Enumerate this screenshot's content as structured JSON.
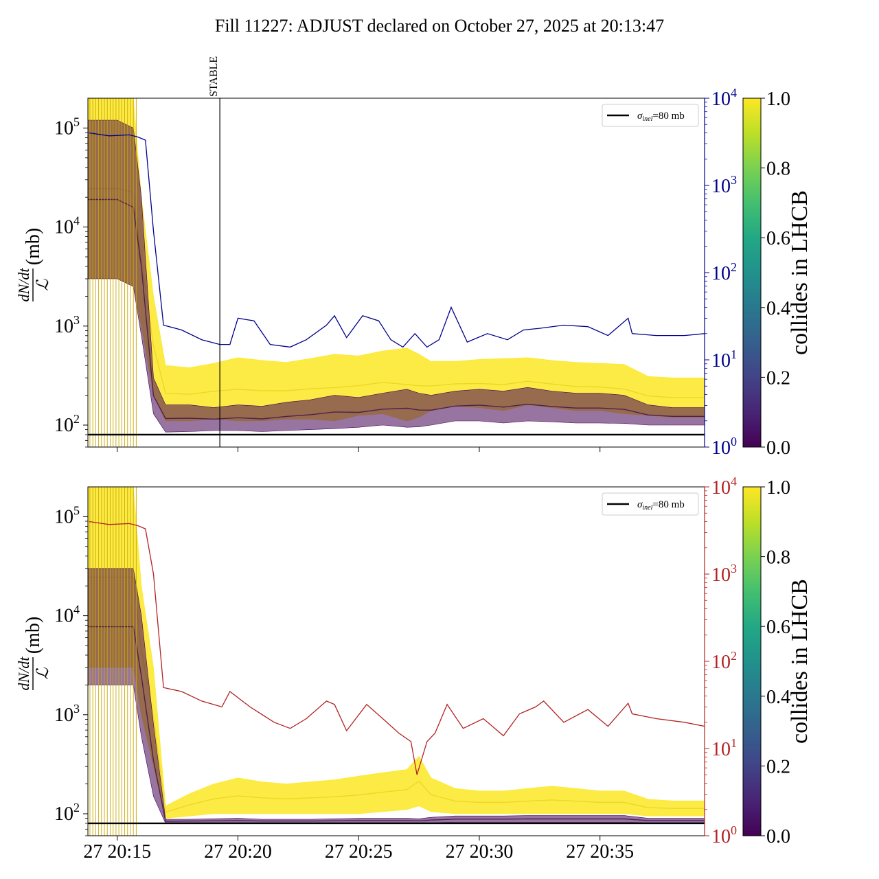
{
  "figure": {
    "title": "Fill 11227: ADJUST declared on October 27, 2025 at 20:13:47"
  },
  "chart_data": [
    {
      "type": "line",
      "panel": "top",
      "ylabel_left": "dN/dt / ℒ (mb)",
      "ylabel_left_parts": {
        "numerator": "dN/dt",
        "denominator": "ℒ",
        "unit": "(mb)"
      },
      "yscale": "log",
      "ylim_left": [
        60,
        200000
      ],
      "yticks_left": [
        {
          "value": 100,
          "label": "10",
          "exp": "2"
        },
        {
          "value": 1000,
          "label": "10",
          "exp": "3"
        },
        {
          "value": 10000,
          "label": "10",
          "exp": "4"
        },
        {
          "value": 100000,
          "label": "10",
          "exp": "5"
        }
      ],
      "ylim_right": [
        1,
        10000
      ],
      "yticks_right": [
        {
          "value": 1,
          "label": "10",
          "exp": "0"
        },
        {
          "value": 10,
          "label": "10",
          "exp": "1"
        },
        {
          "value": 100,
          "label": "10",
          "exp": "2"
        },
        {
          "value": 1000,
          "label": "10",
          "exp": "3"
        },
        {
          "value": 10000,
          "label": "10",
          "exp": "4"
        }
      ],
      "right_axis_color": "#00008b",
      "xlim": [
        "20:13:47",
        "20:39:20"
      ],
      "vline": {
        "time": "20:19:15",
        "label": "STABLE"
      },
      "hline": {
        "value": 80
      },
      "legend": {
        "label_symbol": "σ",
        "label_subscript": "inel",
        "label_text": "=80 mb",
        "position": "upper right"
      },
      "colorbar": {
        "label": "collides in LHCB",
        "ticks": [
          "0.0",
          "0.2",
          "0.4",
          "0.6",
          "0.8",
          "1.0"
        ],
        "colormap": "viridis"
      },
      "right_series": {
        "color": "#00008b",
        "t": [
          "20:13:50",
          "20:14:40",
          "20:15:30",
          "20:15:50",
          "20:16:10",
          "20:16:30",
          "20:16:55",
          "20:17:40",
          "20:18:30",
          "20:19:15",
          "20:19:40",
          "20:20:00",
          "20:20:40",
          "20:21:20",
          "20:22:10",
          "20:22:50",
          "20:23:40",
          "20:24:00",
          "20:24:30",
          "20:25:10",
          "20:25:50",
          "20:26:20",
          "20:26:50",
          "20:27:20",
          "20:27:50",
          "20:28:20",
          "20:28:50",
          "20:29:30",
          "20:30:20",
          "20:31:10",
          "20:31:50",
          "20:32:30",
          "20:33:30",
          "20:34:30",
          "20:35:20",
          "20:36:10",
          "20:36:20",
          "20:37:20",
          "20:38:30",
          "20:39:20"
        ],
        "values": [
          4000,
          3700,
          3800,
          3600,
          3300,
          300,
          25,
          22,
          17,
          15,
          15,
          30,
          28,
          15,
          14,
          17,
          25,
          32,
          18,
          32,
          28,
          17,
          14,
          20,
          14,
          17,
          40,
          16,
          20,
          17,
          22,
          23,
          25,
          24,
          19,
          30,
          20,
          19,
          19,
          20
        ]
      },
      "envelope_series": [
        {
          "name": "collides in LHCB = 1.0",
          "color": "#fde725",
          "t": [
            "20:13:47",
            "20:15:00",
            "20:15:40",
            "20:16:00",
            "20:16:30",
            "20:17:00",
            "20:18:00",
            "20:19:00",
            "20:20:00",
            "20:21:00",
            "20:22:00",
            "20:23:00",
            "20:24:00",
            "20:25:00",
            "20:26:00",
            "20:27:00",
            "20:27:30",
            "20:28:00",
            "20:29:00",
            "20:30:00",
            "20:31:00",
            "20:32:00",
            "20:33:00",
            "20:34:00",
            "20:35:00",
            "20:36:00",
            "20:37:00",
            "20:38:00",
            "20:39:20"
          ],
          "upper": [
            200000,
            200000,
            200000,
            20000,
            2000,
            400,
            380,
            420,
            480,
            450,
            430,
            470,
            520,
            500,
            560,
            600,
            520,
            440,
            440,
            460,
            470,
            480,
            450,
            430,
            420,
            410,
            310,
            300,
            300
          ],
          "lower": [
            3000,
            3000,
            2500,
            1000,
            200,
            110,
            110,
            115,
            110,
            110,
            115,
            115,
            110,
            125,
            130,
            110,
            120,
            140,
            155,
            150,
            140,
            160,
            150,
            140,
            140,
            130,
            125,
            120,
            120
          ]
        },
        {
          "name": "collides in LHCB = 0.0",
          "color": "#440154",
          "t": [
            "20:13:47",
            "20:15:00",
            "20:15:40",
            "20:16:00",
            "20:16:30",
            "20:17:00",
            "20:18:00",
            "20:19:00",
            "20:20:00",
            "20:21:00",
            "20:22:00",
            "20:23:00",
            "20:24:00",
            "20:25:00",
            "20:26:00",
            "20:27:00",
            "20:27:30",
            "20:28:00",
            "20:29:00",
            "20:30:00",
            "20:31:00",
            "20:32:00",
            "20:33:00",
            "20:34:00",
            "20:35:00",
            "20:36:00",
            "20:37:00",
            "20:38:00",
            "20:39:20"
          ],
          "upper": [
            120000,
            120000,
            100000,
            20000,
            300,
            160,
            160,
            150,
            160,
            155,
            170,
            180,
            200,
            190,
            210,
            230,
            210,
            200,
            220,
            230,
            220,
            240,
            220,
            210,
            210,
            200,
            160,
            150,
            150
          ],
          "lower": [
            3000,
            3000,
            2500,
            800,
            130,
            85,
            86,
            88,
            88,
            86,
            88,
            90,
            92,
            95,
            100,
            95,
            96,
            100,
            110,
            110,
            105,
            110,
            108,
            105,
            105,
            104,
            100,
            100,
            100
          ]
        }
      ]
    },
    {
      "type": "line",
      "panel": "bottom",
      "ylabel_left": "dN/dt / ℒ (mb)",
      "ylabel_left_parts": {
        "numerator": "dN/dt",
        "denominator": "ℒ",
        "unit": "(mb)"
      },
      "yscale": "log",
      "ylim_left": [
        60,
        200000
      ],
      "yticks_left": [
        {
          "value": 100,
          "label": "10",
          "exp": "2"
        },
        {
          "value": 1000,
          "label": "10",
          "exp": "3"
        },
        {
          "value": 10000,
          "label": "10",
          "exp": "4"
        },
        {
          "value": 100000,
          "label": "10",
          "exp": "5"
        }
      ],
      "ylim_right": [
        1,
        10000
      ],
      "yticks_right": [
        {
          "value": 1,
          "label": "10",
          "exp": "0"
        },
        {
          "value": 10,
          "label": "10",
          "exp": "1"
        },
        {
          "value": 100,
          "label": "10",
          "exp": "2"
        },
        {
          "value": 1000,
          "label": "10",
          "exp": "3"
        },
        {
          "value": 10000,
          "label": "10",
          "exp": "4"
        }
      ],
      "right_axis_color": "#b22222",
      "xlim": [
        "20:13:47",
        "20:39:20"
      ],
      "xticks": [
        "27 20:15",
        "27 20:20",
        "27 20:25",
        "27 20:30",
        "27 20:35"
      ],
      "xtick_times": [
        "20:15:00",
        "20:20:00",
        "20:25:00",
        "20:30:00",
        "20:35:00"
      ],
      "hline": {
        "value": 80
      },
      "legend": {
        "label_symbol": "σ",
        "label_subscript": "inel",
        "label_text": "=80 mb",
        "position": "upper right"
      },
      "colorbar": {
        "label": "collides in LHCB",
        "ticks": [
          "0.0",
          "0.2",
          "0.4",
          "0.6",
          "0.8",
          "1.0"
        ],
        "colormap": "viridis"
      },
      "right_series": {
        "color": "#b22222",
        "t": [
          "20:13:50",
          "20:14:40",
          "20:15:30",
          "20:15:50",
          "20:16:10",
          "20:16:30",
          "20:16:55",
          "20:17:40",
          "20:18:30",
          "20:19:20",
          "20:19:40",
          "20:20:30",
          "20:21:30",
          "20:22:10",
          "20:22:50",
          "20:23:40",
          "20:24:00",
          "20:24:30",
          "20:25:20",
          "20:26:00",
          "20:26:40",
          "20:27:10",
          "20:27:25",
          "20:27:50",
          "20:28:10",
          "20:28:40",
          "20:29:20",
          "20:30:10",
          "20:31:00",
          "20:31:40",
          "20:32:20",
          "20:32:40",
          "20:33:30",
          "20:34:30",
          "20:35:20",
          "20:36:10",
          "20:36:20",
          "20:37:20",
          "20:38:30",
          "20:39:20"
        ],
        "values": [
          4000,
          3700,
          3800,
          3600,
          3300,
          1000,
          50,
          45,
          35,
          30,
          45,
          30,
          20,
          17,
          22,
          35,
          32,
          16,
          32,
          22,
          15,
          12,
          5,
          12,
          15,
          32,
          17,
          22,
          14,
          25,
          30,
          35,
          20,
          28,
          18,
          33,
          25,
          22,
          20,
          18
        ]
      },
      "envelope_series": [
        {
          "name": "collides in LHCB = 1.0",
          "color": "#fde725",
          "t": [
            "20:13:47",
            "20:15:00",
            "20:15:40",
            "20:16:00",
            "20:16:30",
            "20:17:00",
            "20:18:00",
            "20:19:00",
            "20:20:00",
            "20:21:00",
            "20:22:00",
            "20:23:00",
            "20:24:00",
            "20:25:00",
            "20:26:00",
            "20:27:00",
            "20:27:30",
            "20:28:00",
            "20:29:00",
            "20:30:00",
            "20:31:00",
            "20:32:00",
            "20:33:00",
            "20:34:00",
            "20:35:00",
            "20:36:00",
            "20:37:00",
            "20:38:00",
            "20:39:20"
          ],
          "upper": [
            200000,
            200000,
            200000,
            20000,
            3000,
            120,
            160,
            200,
            230,
            210,
            200,
            210,
            220,
            240,
            260,
            280,
            380,
            230,
            180,
            170,
            170,
            180,
            190,
            180,
            170,
            170,
            140,
            135,
            135
          ],
          "lower": [
            3000,
            3000,
            3000,
            1000,
            300,
            90,
            95,
            100,
            100,
            100,
            100,
            100,
            100,
            100,
            105,
            110,
            120,
            105,
            100,
            100,
            100,
            100,
            100,
            100,
            100,
            100,
            95,
            95,
            95
          ]
        },
        {
          "name": "collides in LHCB = 0.0",
          "color": "#440154",
          "t": [
            "20:13:47",
            "20:15:00",
            "20:15:40",
            "20:16:00",
            "20:16:30",
            "20:17:00",
            "20:18:00",
            "20:19:00",
            "20:20:00",
            "20:21:00",
            "20:22:00",
            "20:23:00",
            "20:24:00",
            "20:25:00",
            "20:26:00",
            "20:27:00",
            "20:27:30",
            "20:28:00",
            "20:29:00",
            "20:30:00",
            "20:31:00",
            "20:32:00",
            "20:33:00",
            "20:34:00",
            "20:35:00",
            "20:36:00",
            "20:37:00",
            "20:38:00",
            "20:39:20"
          ],
          "upper": [
            30000,
            30000,
            30000,
            10000,
            800,
            88,
            88,
            89,
            90,
            88,
            88,
            88,
            89,
            90,
            90,
            90,
            89,
            92,
            95,
            95,
            95,
            96,
            96,
            96,
            96,
            96,
            90,
            90,
            90
          ],
          "lower": [
            2000,
            2000,
            2000,
            600,
            150,
            80,
            81,
            81,
            81,
            81,
            81,
            81,
            81,
            81,
            81,
            81,
            81,
            81,
            82,
            82,
            82,
            82,
            82,
            82,
            82,
            82,
            81,
            81,
            81
          ]
        }
      ]
    }
  ]
}
